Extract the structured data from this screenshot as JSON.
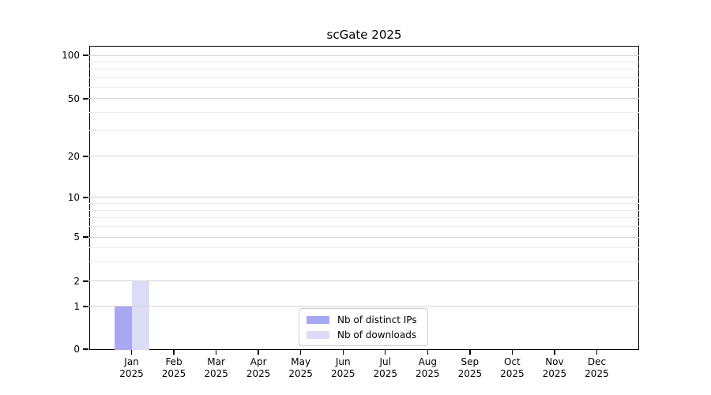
{
  "title": "scGate 2025",
  "chart_data": {
    "type": "bar",
    "title": "scGate 2025",
    "yscale": "symlog",
    "ylim": [
      0,
      115
    ],
    "grid": true,
    "legend_position": "lower center",
    "y_ticks": [
      0,
      1,
      2,
      5,
      10,
      20,
      50,
      100
    ],
    "y_minor_ticks": [
      3,
      4,
      6,
      7,
      8,
      9,
      30,
      40,
      60,
      70,
      80,
      90
    ],
    "x_tick_labels": [
      {
        "month": "Jan",
        "year": "2025"
      },
      {
        "month": "Feb",
        "year": "2025"
      },
      {
        "month": "Mar",
        "year": "2025"
      },
      {
        "month": "Apr",
        "year": "2025"
      },
      {
        "month": "May",
        "year": "2025"
      },
      {
        "month": "Jun",
        "year": "2025"
      },
      {
        "month": "Jul",
        "year": "2025"
      },
      {
        "month": "Aug",
        "year": "2025"
      },
      {
        "month": "Sep",
        "year": "2025"
      },
      {
        "month": "Oct",
        "year": "2025"
      },
      {
        "month": "Nov",
        "year": "2025"
      },
      {
        "month": "Dec",
        "year": "2025"
      }
    ],
    "series": [
      {
        "name": "Nb of distinct IPs",
        "color": "#a8a8f2",
        "values": [
          1,
          0,
          0,
          0,
          0,
          0,
          0,
          0,
          0,
          0,
          0,
          0
        ]
      },
      {
        "name": "Nb of downloads",
        "color": "#dcdcf6",
        "values": [
          2,
          0,
          0,
          0,
          0,
          0,
          0,
          0,
          0,
          0,
          0,
          0
        ]
      }
    ],
    "colors": {
      "axis": "#000000",
      "grid_major": "#d5d5d5",
      "grid_minor": "#ececec",
      "legend_border": "#cccccc"
    }
  }
}
